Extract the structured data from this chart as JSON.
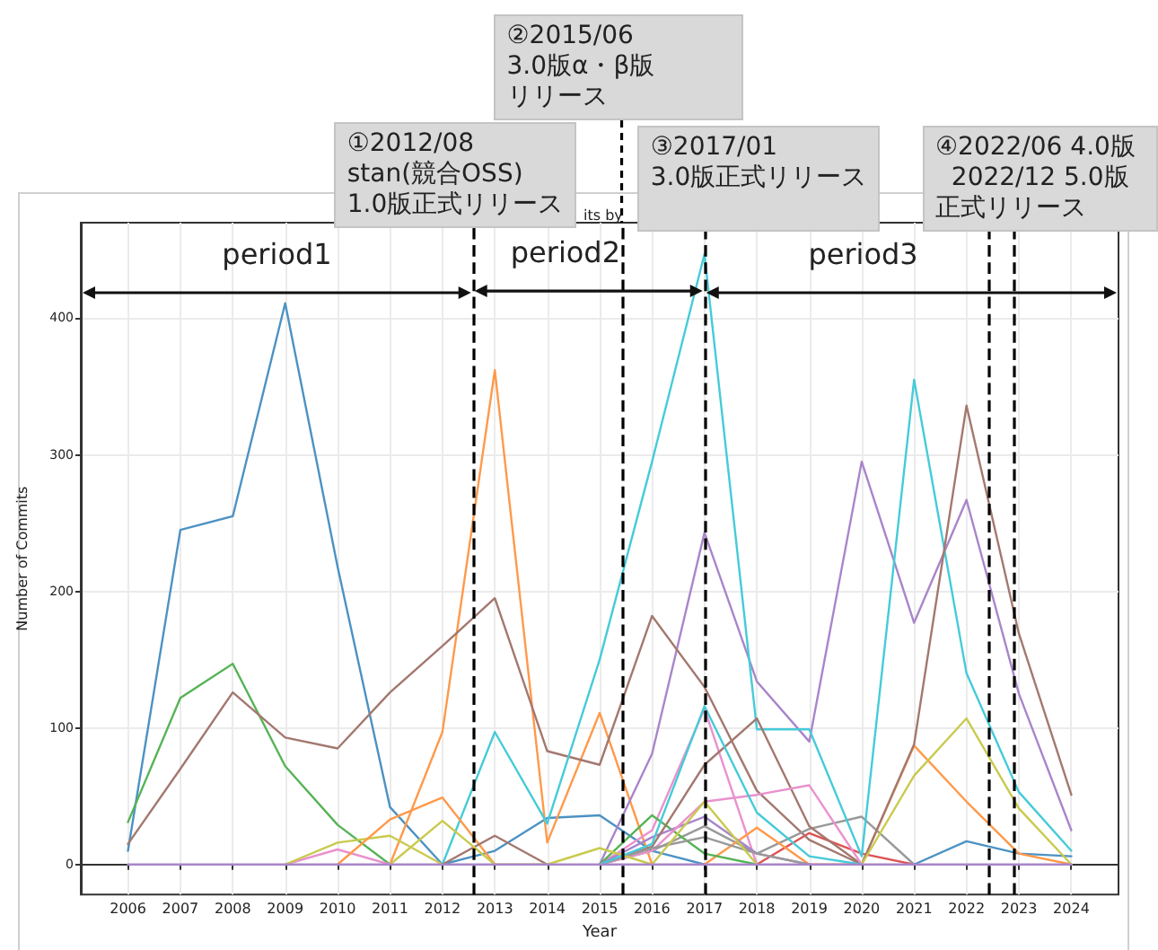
{
  "chart_data": {
    "type": "line",
    "title": "its by",
    "xlabel": "Year",
    "ylabel": "Number of Commits",
    "x": [
      2006,
      2007,
      2008,
      2009,
      2010,
      2011,
      2012,
      2013,
      2014,
      2015,
      2016,
      2017,
      2018,
      2019,
      2020,
      2021,
      2022,
      2023,
      2024
    ],
    "xlim": [
      2005.1,
      2024.9
    ],
    "xticks": [
      2006,
      2007,
      2008,
      2009,
      2010,
      2011,
      2012,
      2013,
      2014,
      2015,
      2016,
      2017,
      2018,
      2019,
      2020,
      2021,
      2022,
      2023,
      2024
    ],
    "ylim": [
      -22,
      470
    ],
    "yticks": [
      0,
      100,
      200,
      300,
      400
    ],
    "grid": true,
    "marker": "none",
    "series": [
      {
        "color": "#4c92c3",
        "values": [
          10,
          245,
          255,
          411,
          218,
          42,
          0,
          10,
          34,
          36,
          10,
          0,
          null,
          null,
          null,
          null,
          null,
          null,
          null
        ]
      },
      {
        "color": "#ff994a",
        "values": [
          null,
          null,
          null,
          null,
          null,
          0,
          97,
          362,
          16,
          111,
          0,
          null,
          null,
          null,
          null,
          null,
          null,
          null,
          null
        ]
      },
      {
        "color": "#56b356",
        "values": [
          31,
          122,
          147,
          72,
          29,
          0,
          null,
          null,
          null,
          null,
          null,
          null,
          null,
          null,
          null,
          null,
          null,
          null,
          null
        ]
      },
      {
        "color": "#de5253",
        "values": [
          null,
          null,
          null,
          null,
          null,
          null,
          null,
          null,
          null,
          null,
          null,
          null,
          0,
          23,
          8,
          0,
          null,
          null,
          null
        ]
      },
      {
        "color": "#a985ca",
        "values": [
          null,
          null,
          null,
          null,
          null,
          null,
          null,
          null,
          null,
          0,
          81,
          243,
          134,
          90,
          295,
          177,
          267,
          125,
          25
        ]
      },
      {
        "color": "#a3786f",
        "values": [
          15,
          70,
          126,
          93,
          85,
          126,
          160,
          195,
          83,
          73,
          182,
          130,
          54,
          18,
          0,
          null,
          null,
          null,
          null
        ]
      },
      {
        "color": "#e992ce",
        "values": [
          null,
          null,
          null,
          0,
          11,
          0,
          null,
          null,
          null,
          0,
          25,
          114,
          0,
          null,
          null,
          null,
          null,
          null,
          null
        ]
      },
      {
        "color": "#999999",
        "values": [
          null,
          null,
          null,
          null,
          null,
          null,
          null,
          null,
          null,
          0,
          10,
          28,
          8,
          26,
          35,
          0,
          null,
          null,
          null
        ]
      },
      {
        "color": "#c9ca4e",
        "values": [
          null,
          null,
          null,
          0,
          16,
          21,
          0,
          null,
          null,
          null,
          null,
          null,
          null,
          null,
          null,
          null,
          null,
          null,
          null
        ]
      },
      {
        "color": "#45cbd9",
        "values": [
          null,
          null,
          null,
          null,
          null,
          null,
          0,
          97,
          30,
          150,
          295,
          447,
          99,
          99,
          6,
          355,
          140,
          53,
          10
        ]
      },
      {
        "color": "#4c92c3",
        "values": [
          null,
          null,
          null,
          null,
          null,
          null,
          null,
          null,
          null,
          null,
          null,
          null,
          null,
          null,
          null,
          0,
          17,
          8,
          6
        ]
      },
      {
        "color": "#ff994a",
        "values": [
          null,
          null,
          null,
          null,
          0,
          33,
          49,
          0,
          null,
          null,
          null,
          0,
          27,
          0,
          0,
          87,
          46,
          8,
          0
        ]
      },
      {
        "color": "#56b356",
        "values": [
          null,
          null,
          null,
          null,
          null,
          null,
          null,
          null,
          null,
          0,
          36,
          8,
          0,
          null,
          null,
          null,
          null,
          null,
          null
        ]
      },
      {
        "color": "#a3786f",
        "values": [
          null,
          null,
          null,
          null,
          null,
          null,
          0,
          21,
          0,
          null,
          null,
          null,
          null,
          null,
          null,
          null,
          null,
          null,
          null
        ]
      },
      {
        "color": "#a985ca",
        "values": [
          null,
          null,
          null,
          null,
          null,
          null,
          null,
          null,
          null,
          0,
          20,
          35,
          8,
          0,
          null,
          null,
          null,
          null,
          null
        ]
      },
      {
        "color": "#a3786f",
        "values": [
          null,
          null,
          null,
          null,
          null,
          null,
          null,
          null,
          null,
          0,
          13,
          73,
          107,
          28,
          0,
          88,
          336,
          169,
          51
        ]
      },
      {
        "color": "#e992ce",
        "values": [
          null,
          null,
          null,
          null,
          null,
          null,
          null,
          null,
          null,
          0,
          10,
          46,
          51,
          58,
          0,
          null,
          null,
          null,
          null
        ]
      },
      {
        "color": "#999999",
        "values": [
          null,
          null,
          null,
          null,
          null,
          null,
          null,
          null,
          null,
          0,
          12,
          20,
          8,
          0,
          null,
          null,
          null,
          null,
          null
        ]
      },
      {
        "color": "#c9ca4e",
        "values": [
          null,
          null,
          null,
          null,
          null,
          0,
          32,
          0,
          0,
          12,
          0,
          46,
          0,
          null,
          0,
          65,
          107,
          41,
          0
        ]
      },
      {
        "color": "#45cbd9",
        "values": [
          null,
          null,
          null,
          null,
          null,
          null,
          null,
          null,
          null,
          0,
          15,
          116,
          38,
          6,
          0,
          null,
          null,
          null,
          null
        ]
      },
      {
        "color": "#a985ca",
        "values": [
          0,
          0,
          0,
          0,
          0,
          0,
          0,
          0,
          0,
          0,
          0,
          0,
          0,
          0,
          0,
          0,
          0,
          0,
          0
        ]
      }
    ],
    "ref_lines": [
      {
        "axis": "x",
        "value": 2012.58,
        "label": "①2012/08\nstan(競合OSS)\n1.0版正式リリース"
      },
      {
        "axis": "x",
        "value": 2015.42,
        "label": "②2015/06\n3.0版α・β版リリース"
      },
      {
        "axis": "x",
        "value": 2017.0,
        "label": "③2017/01\n3.0版正式リリース"
      },
      {
        "axis": "x",
        "value": 2022.42,
        "label": "④2022/06 4.0版\n  2022/12 5.0版正式リリース"
      },
      {
        "axis": "x",
        "value": 2022.92
      }
    ],
    "annotations": [
      "period1",
      {
        "text": "period2",
        "x": 2017.0,
        "y": 420
      },
      "period3"
    ]
  }
}
